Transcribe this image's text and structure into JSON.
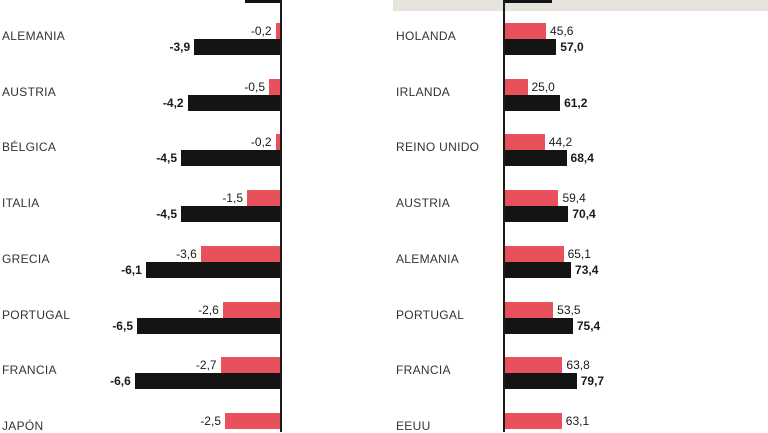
{
  "colors": {
    "red": "#e8505b",
    "black": "#141414",
    "axis": "#1a1a1a",
    "band": "#e6e4dc"
  },
  "chart_data": [
    {
      "type": "bar",
      "orientation": "horizontal",
      "categories": [
        "ALEMANIA",
        "AUSTRIA",
        "BÉLGICA",
        "ITALIA",
        "GRECIA",
        "PORTUGAL",
        "FRANCIA",
        "JAPÓN"
      ],
      "series": [
        {
          "color": "#e8505b",
          "values": [
            -0.2,
            -0.5,
            -0.2,
            -1.5,
            -3.6,
            -2.6,
            -2.7,
            -2.5
          ],
          "labels": [
            "-0,2",
            "-0,5",
            "-0,2",
            "-1,5",
            "-3,6",
            "-2,6",
            "-2,7",
            "-2,5"
          ]
        },
        {
          "color": "#141414",
          "values": [
            -3.9,
            -4.2,
            -4.5,
            -4.5,
            -6.1,
            -6.5,
            -6.6,
            null
          ],
          "labels": [
            "-3,9",
            "-4,2",
            "-4,5",
            "-4,5",
            "-6,1",
            "-6,5",
            "-6,6",
            ""
          ]
        }
      ]
    },
    {
      "type": "bar",
      "orientation": "horizontal",
      "categories": [
        "HOLANDA",
        "IRLANDA",
        "REINO UNIDO",
        "AUSTRIA",
        "ALEMANIA",
        "PORTUGAL",
        "FRANCIA",
        "EEUU"
      ],
      "series": [
        {
          "color": "#e8505b",
          "values": [
            45.6,
            25.0,
            44.2,
            59.4,
            65.1,
            53.5,
            63.8,
            63.1
          ],
          "labels": [
            "45,6",
            "25,0",
            "44,2",
            "59,4",
            "65,1",
            "53,5",
            "63,8",
            "63,1"
          ]
        },
        {
          "color": "#141414",
          "values": [
            57.0,
            61.2,
            68.4,
            70.4,
            73.4,
            75.4,
            79.7,
            null
          ],
          "labels": [
            "57,0",
            "61,2",
            "68,4",
            "70,4",
            "73,4",
            "75,4",
            "79,7",
            ""
          ]
        }
      ]
    }
  ]
}
